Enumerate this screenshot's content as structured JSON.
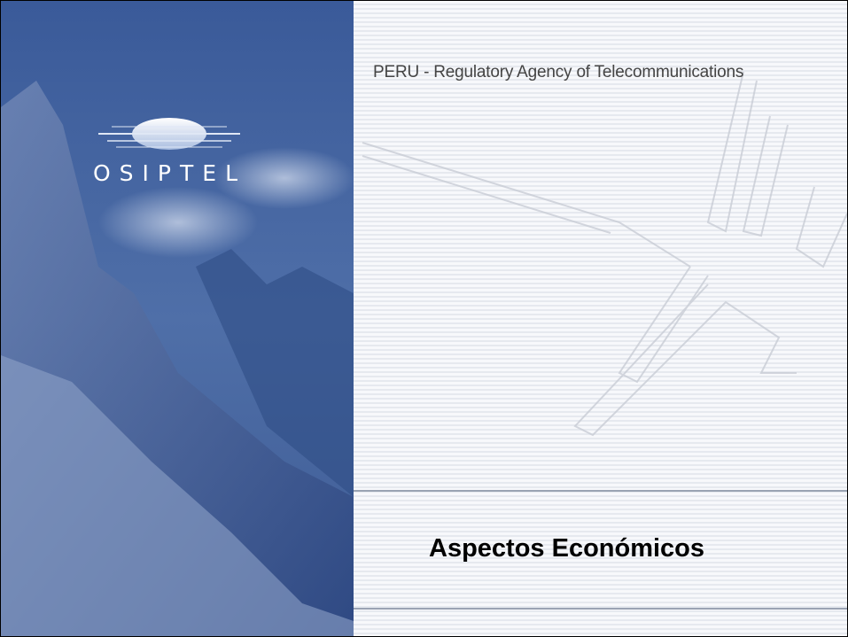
{
  "header": {
    "organization": "PERU - Regulatory Agency of Telecommunications",
    "logo_text": "OSIPTEL"
  },
  "slide": {
    "title": "Aspectos Económicos"
  }
}
